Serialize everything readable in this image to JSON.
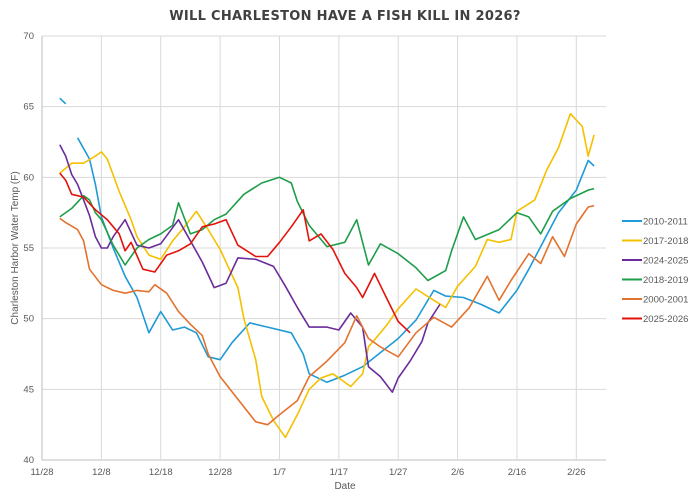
{
  "chart_data": {
    "type": "line",
    "title": "WILL CHARLESTON HAVE A FISH KILL IN 2026?",
    "xlabel": "Date",
    "ylabel": "Charleston Harbor Water Temp (F)",
    "x_ticks": [
      "11/28",
      "12/8",
      "12/18",
      "12/28",
      "1/7",
      "1/17",
      "1/27",
      "2/6",
      "2/16",
      "2/26"
    ],
    "y_ticks": [
      40,
      45,
      50,
      55,
      60,
      65,
      70
    ],
    "ylim": [
      40,
      70
    ],
    "xlim": [
      "11/28",
      "3/3"
    ],
    "grid": true,
    "legend_position": "right",
    "series": [
      {
        "name": "2010-2011",
        "color": "#1f9ad6",
        "points": [
          [
            "12/1",
            65.6
          ],
          [
            "12/2",
            65.2
          ],
          null,
          [
            "12/4",
            62.8
          ],
          [
            "12/6",
            61.3
          ],
          [
            "12/7",
            59.5
          ],
          [
            "12/8",
            57.2
          ],
          [
            "12/10",
            55
          ],
          [
            "12/12",
            53
          ],
          [
            "12/14",
            51.5
          ],
          [
            "12/16",
            49
          ],
          [
            "12/18",
            50.5
          ],
          [
            "12/20",
            49.2
          ],
          [
            "12/22",
            49.4
          ],
          [
            "12/24",
            49
          ],
          [
            "12/26",
            47.3
          ],
          [
            "12/28",
            47.1
          ],
          [
            "12/30",
            48.3
          ],
          [
            "1/2",
            49.7
          ],
          [
            "1/5",
            49.4
          ],
          [
            "1/9",
            49
          ],
          [
            "1/11",
            47.5
          ],
          [
            "1/12",
            46.1
          ],
          [
            "1/15",
            45.5
          ],
          [
            "1/18",
            46
          ],
          [
            "1/21",
            46.6
          ],
          [
            "1/24",
            47.6
          ],
          [
            "1/27",
            48.6
          ],
          [
            "1/30",
            49.9
          ],
          [
            "2/2",
            52
          ],
          [
            "2/4",
            51.6
          ],
          [
            "2/7",
            51.5
          ],
          [
            "2/10",
            51
          ],
          [
            "2/13",
            50.4
          ],
          [
            "2/16",
            52
          ],
          [
            "2/18",
            53.5
          ],
          [
            "2/20",
            55.1
          ],
          [
            "2/23",
            57.5
          ],
          [
            "2/26",
            59.1
          ],
          [
            "2/28",
            61.2
          ],
          [
            "3/1",
            60.8
          ]
        ]
      },
      {
        "name": "2017-2018",
        "color": "#f5c000",
        "points": [
          [
            "12/1",
            60.3
          ],
          [
            "12/3",
            61
          ],
          [
            "12/5",
            61
          ],
          [
            "12/7",
            61.5
          ],
          [
            "12/8",
            61.8
          ],
          [
            "12/9",
            61.3
          ],
          [
            "12/11",
            59
          ],
          [
            "12/13",
            57
          ],
          [
            "12/14",
            55.8
          ],
          [
            "12/16",
            54.5
          ],
          [
            "12/18",
            54.2
          ],
          [
            "12/20",
            55.5
          ],
          [
            "12/22",
            56.5
          ],
          [
            "12/24",
            57.6
          ],
          [
            "12/26",
            56.3
          ],
          [
            "12/28",
            54.9
          ],
          [
            "12/31",
            52.2
          ],
          [
            "1/1",
            50
          ],
          [
            "1/3",
            47.1
          ],
          [
            "1/4",
            44.5
          ],
          [
            "1/6",
            42.8
          ],
          [
            "1/8",
            41.6
          ],
          [
            "1/10",
            43.2
          ],
          [
            "1/12",
            45
          ],
          [
            "1/14",
            45.8
          ],
          [
            "1/16",
            46.1
          ],
          [
            "1/19",
            45.2
          ],
          [
            "1/21",
            46.1
          ],
          [
            "1/22",
            48
          ],
          [
            "1/25",
            49.5
          ],
          [
            "1/27",
            50.7
          ],
          [
            "1/30",
            52.1
          ],
          [
            "2/2",
            51.3
          ],
          [
            "2/4",
            50.8
          ],
          [
            "2/6",
            52.3
          ],
          [
            "2/9",
            53.7
          ],
          [
            "2/11",
            55.6
          ],
          [
            "2/13",
            55.4
          ],
          [
            "2/15",
            55.6
          ],
          [
            "2/16",
            57.6
          ],
          [
            "2/19",
            58.4
          ],
          [
            "2/21",
            60.5
          ],
          [
            "2/23",
            62.1
          ],
          [
            "2/25",
            64.5
          ],
          [
            "2/27",
            63.6
          ],
          [
            "2/28",
            61.5
          ],
          [
            "3/1",
            63
          ]
        ]
      },
      {
        "name": "2024-2025",
        "color": "#6a2c9b",
        "points": [
          [
            "12/1",
            62.3
          ],
          [
            "12/2",
            61.5
          ],
          [
            "12/3",
            60.2
          ],
          [
            "12/4",
            59.5
          ],
          [
            "12/5",
            58.4
          ],
          [
            "12/6",
            57.3
          ],
          [
            "12/7",
            55.8
          ],
          [
            "12/8",
            55
          ],
          [
            "12/9",
            55
          ],
          [
            "12/10",
            55.8
          ],
          [
            "12/12",
            57
          ],
          [
            "12/14",
            55.2
          ],
          [
            "12/16",
            55
          ],
          [
            "12/18",
            55.3
          ],
          [
            "12/21",
            57
          ],
          [
            "12/23",
            55.5
          ],
          [
            "12/25",
            54
          ],
          [
            "12/27",
            52.2
          ],
          [
            "12/29",
            52.5
          ],
          [
            "12/31",
            54.3
          ],
          [
            "1/3",
            54.2
          ],
          [
            "1/6",
            53.7
          ],
          [
            "1/8",
            52.3
          ],
          [
            "1/10",
            50.8
          ],
          [
            "1/12",
            49.4
          ],
          [
            "1/15",
            49.4
          ],
          [
            "1/17",
            49.2
          ],
          [
            "1/19",
            50.4
          ],
          [
            "1/21",
            49.4
          ],
          [
            "1/22",
            46.6
          ],
          [
            "1/24",
            45.9
          ],
          [
            "1/26",
            44.8
          ],
          [
            "1/27",
            45.8
          ],
          [
            "1/29",
            47
          ],
          [
            "1/31",
            48.4
          ],
          [
            "2/1",
            49.7
          ],
          [
            "2/3",
            51
          ]
        ]
      },
      {
        "name": "2018-2019",
        "color": "#1e9e4a",
        "points": [
          [
            "12/1",
            57.2
          ],
          [
            "12/3",
            57.8
          ],
          [
            "12/5",
            58.7
          ],
          [
            "12/6",
            58.4
          ],
          [
            "12/7",
            57.5
          ],
          [
            "12/8",
            57
          ],
          [
            "12/10",
            55.2
          ],
          [
            "12/12",
            53.8
          ],
          [
            "12/14",
            55
          ],
          [
            "12/16",
            55.6
          ],
          [
            "12/18",
            56
          ],
          [
            "12/20",
            56.6
          ],
          [
            "12/21",
            58.2
          ],
          [
            "12/23",
            56
          ],
          [
            "12/25",
            56.3
          ],
          [
            "12/27",
            57
          ],
          [
            "12/29",
            57.4
          ],
          [
            "1/1",
            58.8
          ],
          [
            "1/4",
            59.6
          ],
          [
            "1/7",
            60
          ],
          [
            "1/9",
            59.6
          ],
          [
            "1/10",
            58.3
          ],
          [
            "1/12",
            56.6
          ],
          [
            "1/15",
            55.1
          ],
          [
            "1/18",
            55.4
          ],
          [
            "1/20",
            57
          ],
          [
            "1/22",
            53.8
          ],
          [
            "1/24",
            55.3
          ],
          [
            "1/27",
            54.6
          ],
          [
            "1/30",
            53.6
          ],
          [
            "2/1",
            52.7
          ],
          [
            "2/4",
            53.4
          ],
          [
            "2/5",
            54.8
          ],
          [
            "2/7",
            57.2
          ],
          [
            "2/9",
            55.6
          ],
          [
            "2/13",
            56.3
          ],
          [
            "2/16",
            57.5
          ],
          [
            "2/18",
            57.2
          ],
          [
            "2/20",
            56
          ],
          [
            "2/22",
            57.6
          ],
          [
            "2/25",
            58.5
          ],
          [
            "2/28",
            59.1
          ],
          [
            "3/1",
            59.2
          ]
        ]
      },
      {
        "name": "2000-2001",
        "color": "#e2732f",
        "points": [
          [
            "12/1",
            57.1
          ],
          [
            "12/2",
            56.8
          ],
          [
            "12/4",
            56.3
          ],
          [
            "12/5",
            55.5
          ],
          [
            "12/6",
            53.5
          ],
          [
            "12/8",
            52.4
          ],
          [
            "12/10",
            52
          ],
          [
            "12/12",
            51.8
          ],
          [
            "12/14",
            52
          ],
          [
            "12/16",
            51.9
          ],
          [
            "12/17",
            52.4
          ],
          [
            "12/19",
            51.8
          ],
          [
            "12/21",
            50.5
          ],
          [
            "12/23",
            49.6
          ],
          [
            "12/25",
            48.8
          ],
          [
            "12/26",
            47.5
          ],
          [
            "12/28",
            45.9
          ],
          [
            "12/31",
            44.3
          ],
          [
            "1/3",
            42.7
          ],
          [
            "1/5",
            42.5
          ],
          [
            "1/7",
            43.2
          ],
          [
            "1/10",
            44.2
          ],
          [
            "1/12",
            45.9
          ],
          [
            "1/15",
            47
          ],
          [
            "1/18",
            48.3
          ],
          [
            "1/20",
            50.2
          ],
          [
            "1/22",
            48.6
          ],
          [
            "1/24",
            48
          ],
          [
            "1/27",
            47.3
          ],
          [
            "1/30",
            49
          ],
          [
            "2/2",
            50.1
          ],
          [
            "2/5",
            49.4
          ],
          [
            "2/8",
            50.8
          ],
          [
            "2/11",
            53
          ],
          [
            "2/13",
            51.3
          ],
          [
            "2/15",
            52.7
          ],
          [
            "2/18",
            54.6
          ],
          [
            "2/20",
            53.9
          ],
          [
            "2/22",
            55.8
          ],
          [
            "2/24",
            54.4
          ],
          [
            "2/26",
            56.7
          ],
          [
            "2/28",
            57.9
          ],
          [
            "3/1",
            58
          ]
        ]
      },
      {
        "name": "2025-2026",
        "color": "#e3120b",
        "points": [
          [
            "12/1",
            60.3
          ],
          [
            "12/2",
            59.8
          ],
          [
            "12/3",
            58.8
          ],
          [
            "12/5",
            58.6
          ],
          [
            "12/7",
            57.7
          ],
          [
            "12/9",
            57
          ],
          [
            "12/11",
            56
          ],
          [
            "12/12",
            54.8
          ],
          [
            "12/13",
            55.4
          ],
          [
            "12/15",
            53.5
          ],
          [
            "12/17",
            53.3
          ],
          [
            "12/19",
            54.5
          ],
          [
            "12/21",
            54.8
          ],
          [
            "12/23",
            55.3
          ],
          [
            "12/25",
            56.5
          ],
          [
            "12/27",
            56.7
          ],
          [
            "12/29",
            57
          ],
          [
            "12/31",
            55.2
          ],
          [
            "1/3",
            54.4
          ],
          [
            "1/5",
            54.4
          ],
          [
            "1/7",
            55.4
          ],
          [
            "1/9",
            56.5
          ],
          [
            "1/11",
            57.7
          ],
          [
            "1/12",
            55.5
          ],
          [
            "1/14",
            56
          ],
          [
            "1/16",
            54.9
          ],
          [
            "1/18",
            53.2
          ],
          [
            "1/20",
            52.2
          ],
          [
            "1/21",
            51.5
          ],
          [
            "1/23",
            53.2
          ],
          [
            "1/25",
            51.5
          ],
          [
            "1/27",
            49.8
          ],
          [
            "1/29",
            49
          ]
        ]
      }
    ]
  }
}
